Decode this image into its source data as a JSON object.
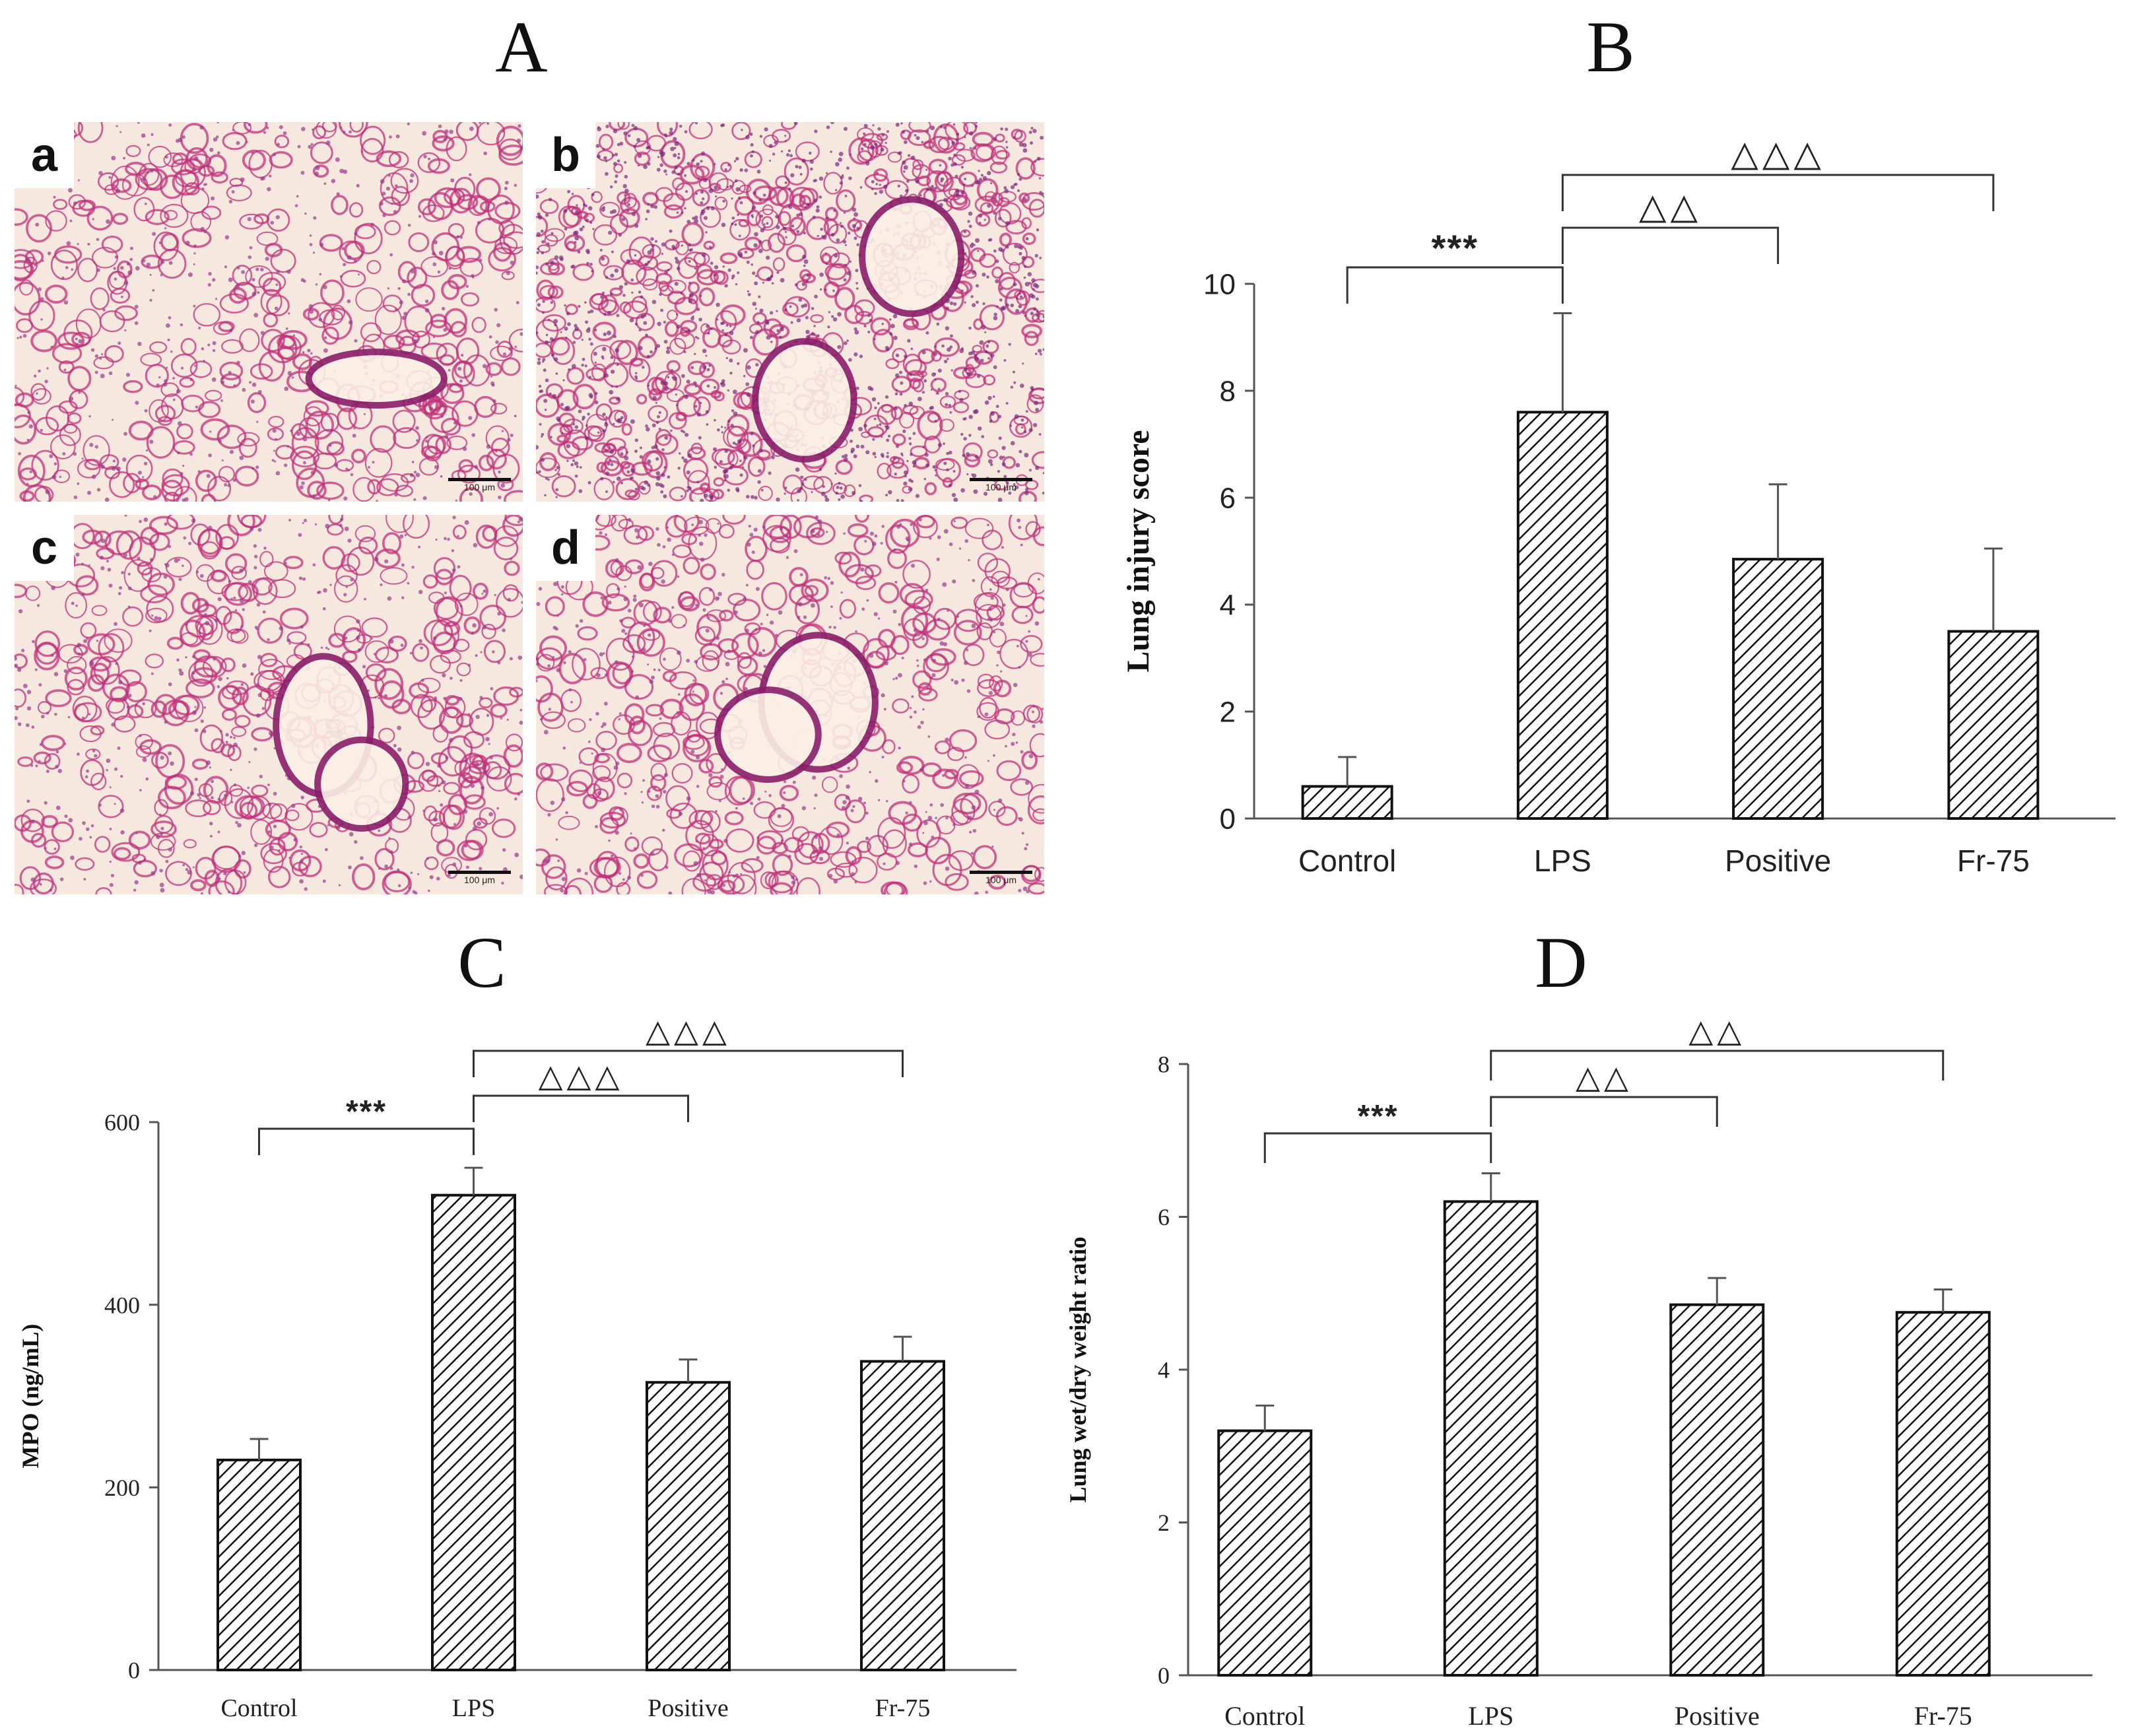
{
  "panels": {
    "A": "A",
    "B": "B",
    "C": "C",
    "D": "D"
  },
  "micrographs": [
    {
      "label": "a",
      "scale": "100 μm",
      "style": "normal"
    },
    {
      "label": "b",
      "scale": "100 μm",
      "style": "injured"
    },
    {
      "label": "c",
      "scale": "100 μm",
      "style": "mild"
    },
    {
      "label": "d",
      "scale": "100 μm",
      "style": "mild"
    }
  ],
  "colors": {
    "axis": "#555555",
    "bar_stroke": "#111111",
    "hatch": "#111111",
    "tissue": "#c2307a",
    "background_tissue": "#f6e8df"
  },
  "chart_data": [
    {
      "panel": "B",
      "type": "bar",
      "categories": [
        "Control",
        "LPS",
        "Positive",
        "Fr-75"
      ],
      "values": [
        0.6,
        7.6,
        4.85,
        3.5
      ],
      "errors": [
        0.55,
        1.85,
        1.4,
        1.55
      ],
      "ylabel": "Lung injury score",
      "ylim": [
        0,
        10
      ],
      "yticks": [
        0,
        2,
        4,
        6,
        8,
        10
      ],
      "grid": false,
      "significance": [
        {
          "from": "Control",
          "to": "LPS",
          "label": "***"
        },
        {
          "from": "LPS",
          "to": "Positive",
          "label": "△△"
        },
        {
          "from": "LPS",
          "to": "Fr-75",
          "label": "△△△"
        }
      ]
    },
    {
      "panel": "C",
      "type": "bar",
      "categories": [
        "Control",
        "LPS",
        "Positive",
        "Fr-75"
      ],
      "values": [
        230,
        520,
        315,
        338
      ],
      "errors": [
        23,
        30,
        25,
        27
      ],
      "ylabel": "MPO (ng/mL)",
      "ylim": [
        0,
        600
      ],
      "yticks": [
        0,
        200,
        400,
        600
      ],
      "grid": false,
      "significance": [
        {
          "from": "Control",
          "to": "LPS",
          "label": "***"
        },
        {
          "from": "LPS",
          "to": "Positive",
          "label": "△△△"
        },
        {
          "from": "LPS",
          "to": "Fr-75",
          "label": "△△△"
        }
      ]
    },
    {
      "panel": "D",
      "type": "bar",
      "categories": [
        "Control",
        "LPS",
        "Positive",
        "Fr-75"
      ],
      "values": [
        3.2,
        6.2,
        4.85,
        4.75
      ],
      "errors": [
        0.33,
        0.37,
        0.35,
        0.3
      ],
      "ylabel": "Lung wet/dry weight ratio",
      "ylim": [
        0,
        8
      ],
      "yticks": [
        0,
        2,
        4,
        6,
        8
      ],
      "grid": false,
      "significance": [
        {
          "from": "Control",
          "to": "LPS",
          "label": "***"
        },
        {
          "from": "LPS",
          "to": "Positive",
          "label": "△△"
        },
        {
          "from": "LPS",
          "to": "Fr-75",
          "label": "△△"
        }
      ]
    }
  ]
}
